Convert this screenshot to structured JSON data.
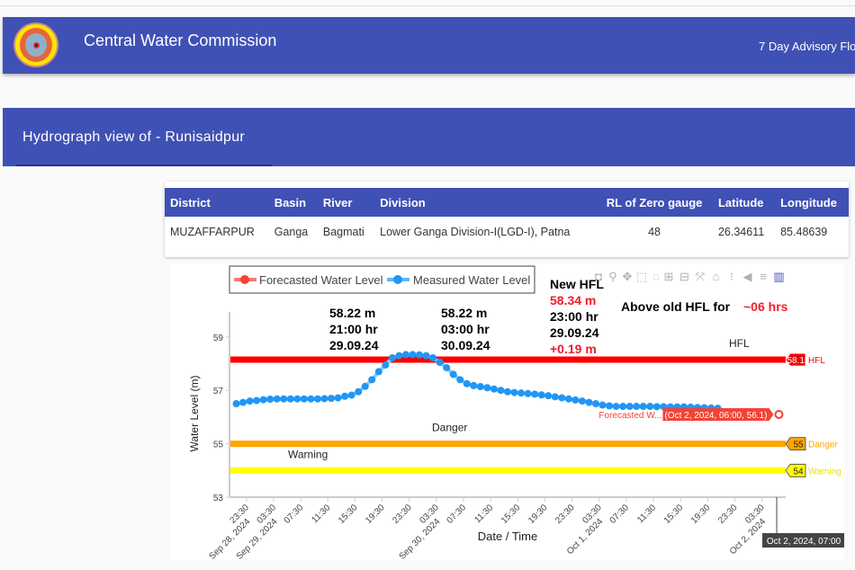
{
  "header": {
    "title": "Central Water Commission",
    "advisory_link": "7 Day Advisory Flo"
  },
  "page": {
    "subtitle": "Hydrograph view of - Runisaidpur"
  },
  "station_table": {
    "columns": [
      "District",
      "Basin",
      "River",
      "Division",
      "RL of Zero gauge",
      "Latitude",
      "Longitude"
    ],
    "row": [
      "MUZAFFARPUR",
      "Ganga",
      "Bagmati",
      "Lower Ganga Division-I(LGD-I), Patna",
      "48",
      "26.34611",
      "85.48639"
    ]
  },
  "modebar": [
    "camera-icon",
    "zoom-icon",
    "pan-icon",
    "box-select-icon",
    "lasso-icon",
    "zoom-in-icon",
    "zoom-out-icon",
    "autoscale-icon",
    "reset-axes-icon",
    "spike-lines-icon",
    "hover-closest-icon",
    "hover-compare-icon",
    "plotly-logo-icon"
  ],
  "annotations": {
    "new_hfl_title": "New HFL",
    "new_hfl_value": "58.34 m",
    "new_hfl_time": "23:00 hr",
    "new_hfl_date": "29.09.24",
    "new_hfl_diff": "+0.19 m",
    "above_label": "Above old HFL for",
    "above_value": "~06 hrs",
    "left_level": "58.22 m",
    "left_time": "21:00 hr",
    "left_date": "29.09.24",
    "right_level": "58.22 m",
    "right_time": "03:00 hr",
    "right_date": "30.09.24"
  },
  "hover": {
    "forecast_name": "Forecasted W...",
    "forecast_label": "(Oct 2, 2024, 06:00, 56.1)",
    "x_label": "Oct 2, 2024, 07:00"
  },
  "colors": {
    "hfl": "#ff0000",
    "danger": "#ffa500",
    "warning": "#ffff00",
    "measured": "#2196f3",
    "forecast": "#f44336"
  },
  "chart_data": {
    "type": "line",
    "xlabel": "Date / Time",
    "ylabel": "Water Level (m)",
    "xrange": [
      "2024-09-28 21:00",
      "2024-10-02 07:00"
    ],
    "ylim": [
      53,
      59.6
    ],
    "yticks": [
      53,
      55,
      57,
      59
    ],
    "xticks": [
      {
        "t": "23:30",
        "d": "Sep 28, 2024"
      },
      {
        "t": "03:30",
        "d": "Sep 29, 2024"
      },
      {
        "t": "07:30",
        "d": ""
      },
      {
        "t": "11:30",
        "d": ""
      },
      {
        "t": "15:30",
        "d": ""
      },
      {
        "t": "19:30",
        "d": ""
      },
      {
        "t": "23:30",
        "d": ""
      },
      {
        "t": "03:30",
        "d": "Sep 30, 2024"
      },
      {
        "t": "07:30",
        "d": ""
      },
      {
        "t": "11:30",
        "d": ""
      },
      {
        "t": "15:30",
        "d": ""
      },
      {
        "t": "19:30",
        "d": ""
      },
      {
        "t": "23:30",
        "d": ""
      },
      {
        "t": "03:30",
        "d": "Oct 1, 2024"
      },
      {
        "t": "07:30",
        "d": ""
      },
      {
        "t": "11:30",
        "d": ""
      },
      {
        "t": "15:30",
        "d": ""
      },
      {
        "t": "19:30",
        "d": ""
      },
      {
        "t": "23:30",
        "d": ""
      },
      {
        "t": "03:30",
        "d": "Oct 2, 2024"
      }
    ],
    "legend": [
      "Forecasted Water Level",
      "Measured Water Level"
    ],
    "legend_position": "top-left",
    "measured": {
      "name": "Measured Water Level",
      "start": "2024-09-28 22:00",
      "interval_hours": 1,
      "values": [
        56.5,
        56.55,
        56.6,
        56.62,
        56.65,
        56.67,
        56.68,
        56.68,
        56.68,
        56.68,
        56.68,
        56.68,
        56.68,
        56.69,
        56.7,
        56.72,
        56.78,
        56.82,
        56.95,
        57.15,
        57.4,
        57.7,
        57.95,
        58.22,
        58.3,
        58.34,
        58.34,
        58.33,
        58.3,
        58.22,
        58.05,
        57.85,
        57.6,
        57.4,
        57.25,
        57.18,
        57.14,
        57.1,
        57.05,
        57.0,
        56.95,
        56.92,
        56.9,
        56.88,
        56.86,
        56.83,
        56.8,
        56.76,
        56.72,
        56.68,
        56.64,
        56.6,
        56.55,
        56.5,
        56.45,
        56.42,
        56.4,
        56.4,
        56.4,
        56.4,
        56.4,
        56.4,
        56.39,
        56.39,
        56.38,
        56.38,
        56.38,
        56.37,
        56.36,
        56.35,
        56.34,
        56.33
      ]
    },
    "forecast": {
      "name": "Forecasted Water Level",
      "points": [
        {
          "x": "2024-10-02 06:00",
          "y": 56.1
        }
      ]
    },
    "reference_lines": [
      {
        "name": "HFL",
        "value": 58.15,
        "label": "HFL",
        "color": "#ff0000"
      },
      {
        "name": "Danger",
        "value": 55,
        "label": "Danger",
        "color": "#ffa500"
      },
      {
        "name": "Warning",
        "value": 54,
        "label": "Warning",
        "color": "#ffff00"
      }
    ]
  }
}
